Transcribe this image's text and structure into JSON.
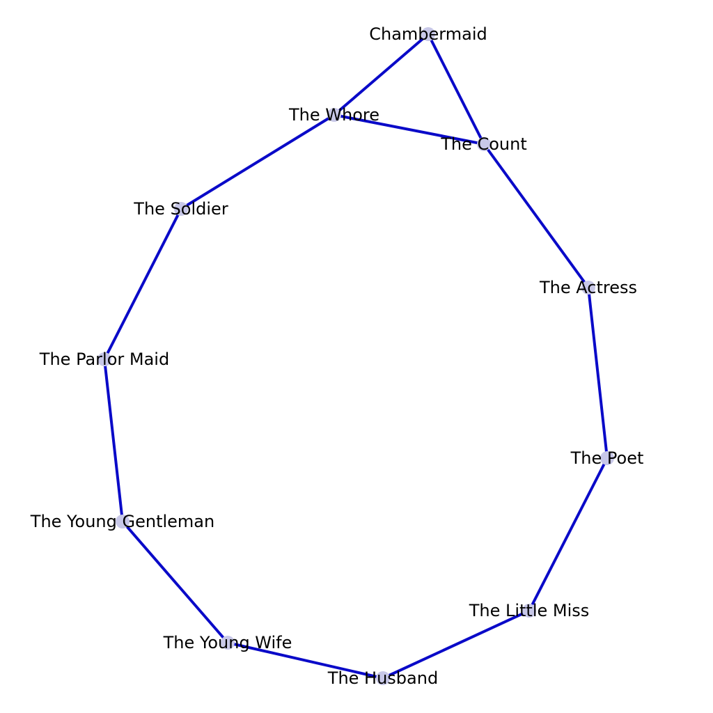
{
  "nodes": [
    {
      "id": "chambermaid",
      "label": "Chambermaid"
    },
    {
      "id": "whore",
      "label": "The Whore"
    },
    {
      "id": "count",
      "label": "The Count"
    },
    {
      "id": "soldier",
      "label": "The Soldier"
    },
    {
      "id": "actress",
      "label": "The Actress"
    },
    {
      "id": "parlor-maid",
      "label": "The Parlor Maid"
    },
    {
      "id": "poet",
      "label": "The Poet"
    },
    {
      "id": "young-gentleman",
      "label": "The Young Gentleman"
    },
    {
      "id": "little-miss",
      "label": "The Little Miss"
    },
    {
      "id": "young-wife",
      "label": "The Young Wife"
    },
    {
      "id": "husband",
      "label": "The Husband"
    }
  ],
  "edges": [
    [
      "chambermaid",
      "whore"
    ],
    [
      "chambermaid",
      "count"
    ],
    [
      "whore",
      "count"
    ],
    [
      "whore",
      "soldier"
    ],
    [
      "count",
      "actress"
    ],
    [
      "soldier",
      "parlor-maid"
    ],
    [
      "actress",
      "poet"
    ],
    [
      "parlor-maid",
      "young-gentleman"
    ],
    [
      "poet",
      "little-miss"
    ],
    [
      "young-gentleman",
      "young-wife"
    ],
    [
      "little-miss",
      "husband"
    ],
    [
      "young-wife",
      "husband"
    ]
  ],
  "colors": {
    "edge": "#0a0ac8",
    "node": "#c8c8e8",
    "label": "#000000"
  }
}
